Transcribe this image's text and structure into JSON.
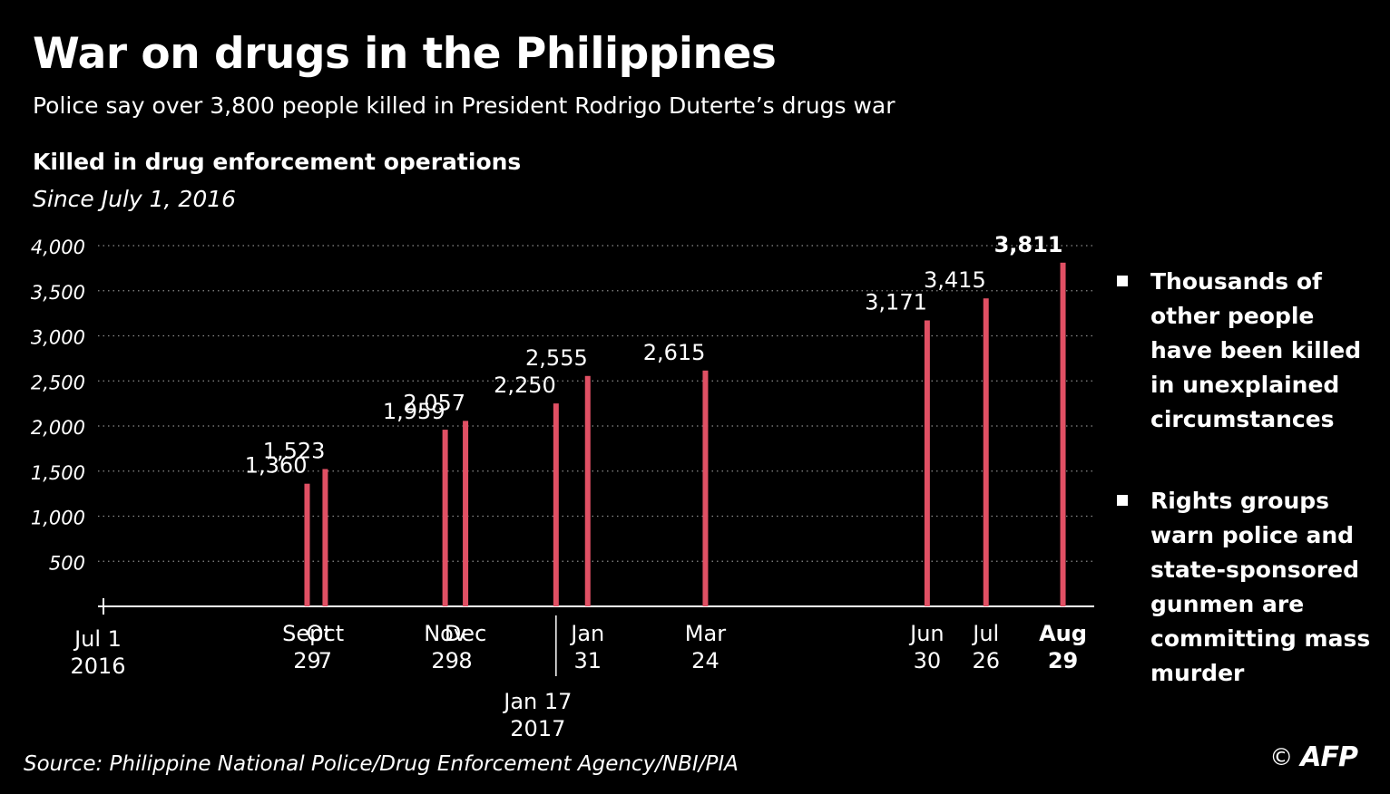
{
  "header": {
    "title": "War on drugs in the Philippines",
    "subtitle": "Police say over 3,800 people killed in President Rodrigo Duterte’s drugs war"
  },
  "chart_data": {
    "type": "bar",
    "title": "Killed in drug enforcement operations",
    "subtitle": "Since July 1, 2016",
    "xlabel": "",
    "ylabel": "",
    "ylim": [
      0,
      4000
    ],
    "yticks": [
      {
        "value": 500,
        "label": "500"
      },
      {
        "value": 1000,
        "label": "1,000"
      },
      {
        "value": 1500,
        "label": "1,500"
      },
      {
        "value": 2000,
        "label": "2,000"
      },
      {
        "value": 2500,
        "label": "2,500"
      },
      {
        "value": 3000,
        "label": "3,000"
      },
      {
        "value": 3500,
        "label": "3,500"
      },
      {
        "value": 4000,
        "label": "4,000"
      }
    ],
    "grid": true,
    "x_start": "2016-07-01",
    "x_end": "2017-09-03",
    "series": [
      {
        "values": [
          {
            "date": "2016-09-29",
            "value": 1360,
            "label": "1,360",
            "x_label": [
              "Sept",
              "29"
            ],
            "bold": false
          },
          {
            "date": "2016-10-07",
            "value": 1523,
            "label": "1,523",
            "x_label": [
              "Oct",
              "7"
            ],
            "bold": false
          },
          {
            "date": "2016-11-29",
            "value": 1959,
            "label": "1,959",
            "x_label": [
              "Nov",
              "29"
            ],
            "bold": false
          },
          {
            "date": "2016-12-08",
            "value": 2057,
            "label": "2,057",
            "x_label": [
              "Dec",
              "8"
            ],
            "bold": false
          },
          {
            "date": "2017-01-17",
            "value": 2250,
            "label": "2,250",
            "x_label": [
              "Jan 17",
              "2017"
            ],
            "bold": false
          },
          {
            "date": "2017-01-31",
            "value": 2555,
            "label": "2,555",
            "x_label": [
              "Jan",
              "31"
            ],
            "bold": false
          },
          {
            "date": "2017-03-24",
            "value": 2615,
            "label": "2,615",
            "x_label": [
              "Mar",
              "24"
            ],
            "bold": false
          },
          {
            "date": "2017-06-30",
            "value": 3171,
            "label": "3,171",
            "x_label": [
              "Jun",
              "30"
            ],
            "bold": false
          },
          {
            "date": "2017-07-26",
            "value": 3415,
            "label": "3,415",
            "x_label": [
              "Jul",
              "26"
            ],
            "bold": false
          },
          {
            "date": "2017-08-29",
            "value": 3811,
            "label": "3,811",
            "x_label": [
              "Aug",
              "29"
            ],
            "bold": true
          }
        ]
      }
    ],
    "axis_start_label": [
      "Jul 1",
      "2016"
    ],
    "bar_color": "#e05064",
    "grid_color": "#8a8a8a",
    "text_color": "#ffffff"
  },
  "notes": [
    "Thousands of other people have been killed in unexplained circumstances",
    "Rights groups warn police and state-sponsored gunmen are committing mass murder"
  ],
  "footer": {
    "source": "Source: Philippine National Police/Drug Enforcement Agency/NBI/PIA",
    "copyright": "©",
    "logo_text": "AFP"
  }
}
